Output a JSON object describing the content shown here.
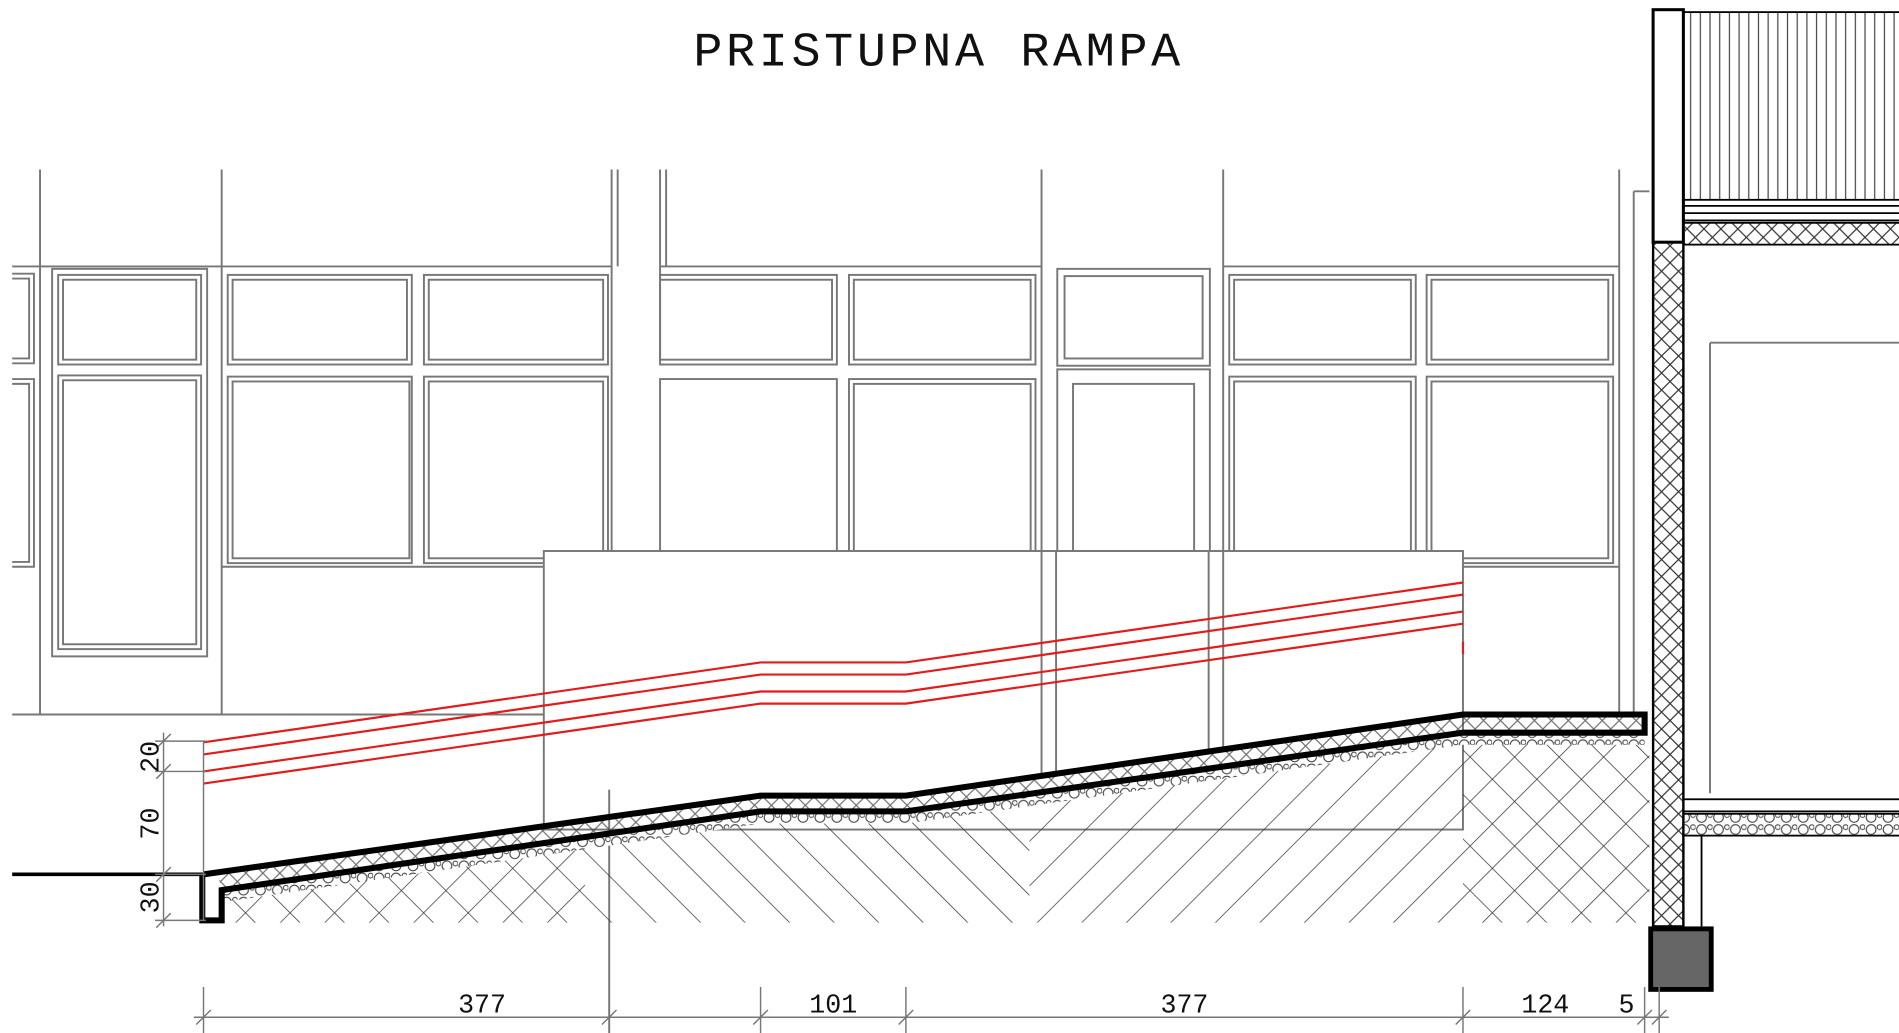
{
  "title": "PRISTUPNA RAMPA",
  "dimensions": {
    "horizontal": [
      377,
      101,
      377,
      124,
      5
    ],
    "vertical": [
      20,
      70,
      30
    ]
  }
}
